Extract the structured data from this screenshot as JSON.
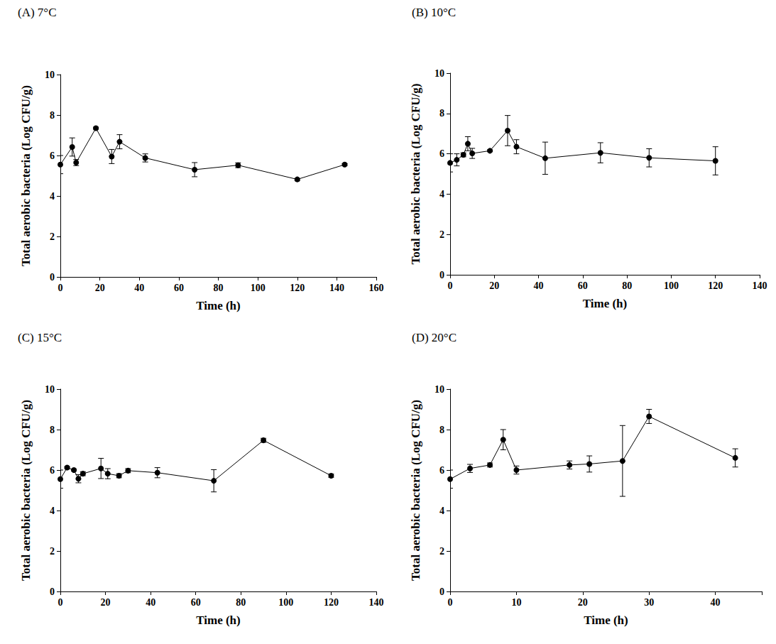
{
  "chart_data": [
    {
      "type": "line",
      "title": "(A) 7°C",
      "x_label": "Time (h)",
      "y_label": "Total aerobic bacteria (Log CFU/g)",
      "xlim": [
        0,
        160
      ],
      "xticks": [
        0,
        20,
        40,
        60,
        80,
        100,
        120,
        140,
        160
      ],
      "ylim": [
        0,
        10
      ],
      "yticks": [
        0,
        2,
        4,
        6,
        8,
        10
      ],
      "grid": false,
      "x": [
        0,
        6,
        8,
        18,
        26,
        30,
        43,
        68,
        90,
        120,
        144
      ],
      "series": [
        {
          "color": "#000000",
          "marker": "circle",
          "values": [
            5.55,
            6.42,
            5.65,
            7.35,
            5.95,
            6.68,
            5.88,
            5.3,
            5.52,
            4.82,
            5.55
          ],
          "errors": [
            0.45,
            0.45,
            0.15,
            0.05,
            0.35,
            0.35,
            0.2,
            0.35,
            0.12,
            0.05,
            0.05
          ]
        }
      ]
    },
    {
      "type": "line",
      "title": "(B) 10°C",
      "x_label": "Time (h)",
      "y_label": "Total aerobic bacteria (Log CFU/g)",
      "xlim": [
        0,
        140
      ],
      "xticks": [
        0,
        20,
        40,
        60,
        80,
        100,
        120,
        140
      ],
      "ylim": [
        0,
        10
      ],
      "yticks": [
        0,
        2,
        4,
        6,
        8,
        10
      ],
      "grid": false,
      "x": [
        0,
        3,
        6,
        8,
        10,
        18,
        26,
        30,
        43,
        68,
        90,
        120
      ],
      "series": [
        {
          "color": "#000000",
          "marker": "circle",
          "values": [
            5.55,
            5.7,
            5.95,
            6.5,
            6.02,
            6.15,
            7.15,
            6.35,
            5.78,
            6.05,
            5.8,
            5.65
          ],
          "errors": [
            0.45,
            0.3,
            0.1,
            0.35,
            0.25,
            0.05,
            0.75,
            0.35,
            0.8,
            0.5,
            0.45,
            0.7
          ]
        }
      ]
    },
    {
      "type": "line",
      "title": "(C) 15°C",
      "x_label": "Time (h)",
      "y_label": "Total aerobic bacteria (Log CFU/g)",
      "xlim": [
        0,
        140
      ],
      "xticks": [
        0,
        20,
        40,
        60,
        80,
        100,
        120,
        140
      ],
      "ylim": [
        0,
        10
      ],
      "yticks": [
        0,
        2,
        4,
        6,
        8,
        10
      ],
      "grid": false,
      "x": [
        0,
        3,
        6,
        8,
        10,
        18,
        21,
        26,
        30,
        43,
        68,
        90,
        120
      ],
      "series": [
        {
          "color": "#000000",
          "marker": "circle",
          "values": [
            5.55,
            6.12,
            6.0,
            5.57,
            5.82,
            6.08,
            5.82,
            5.72,
            5.97,
            5.87,
            5.47,
            7.47,
            5.72
          ],
          "errors": [
            0.45,
            0.05,
            0.05,
            0.2,
            0.1,
            0.5,
            0.25,
            0.1,
            0.1,
            0.25,
            0.55,
            0.1,
            0.08
          ]
        }
      ]
    },
    {
      "type": "line",
      "title": "(D) 20°C",
      "x_label": "Time (h)",
      "y_label": "Total aerobic bacteria (Log CFU/g)",
      "xlim": [
        0,
        47
      ],
      "xticks": [
        0,
        10,
        20,
        30,
        40
      ],
      "ylim": [
        0,
        10
      ],
      "yticks": [
        0,
        2,
        4,
        6,
        8,
        10
      ],
      "grid": false,
      "x": [
        0,
        3,
        6,
        8,
        10,
        18,
        21,
        26,
        30,
        43
      ],
      "series": [
        {
          "color": "#000000",
          "marker": "circle",
          "values": [
            5.55,
            6.08,
            6.25,
            7.5,
            6.0,
            6.25,
            6.3,
            6.45,
            8.65,
            6.6
          ],
          "errors": [
            0.45,
            0.2,
            0.1,
            0.5,
            0.2,
            0.2,
            0.4,
            1.75,
            0.35,
            0.45
          ]
        }
      ]
    }
  ]
}
